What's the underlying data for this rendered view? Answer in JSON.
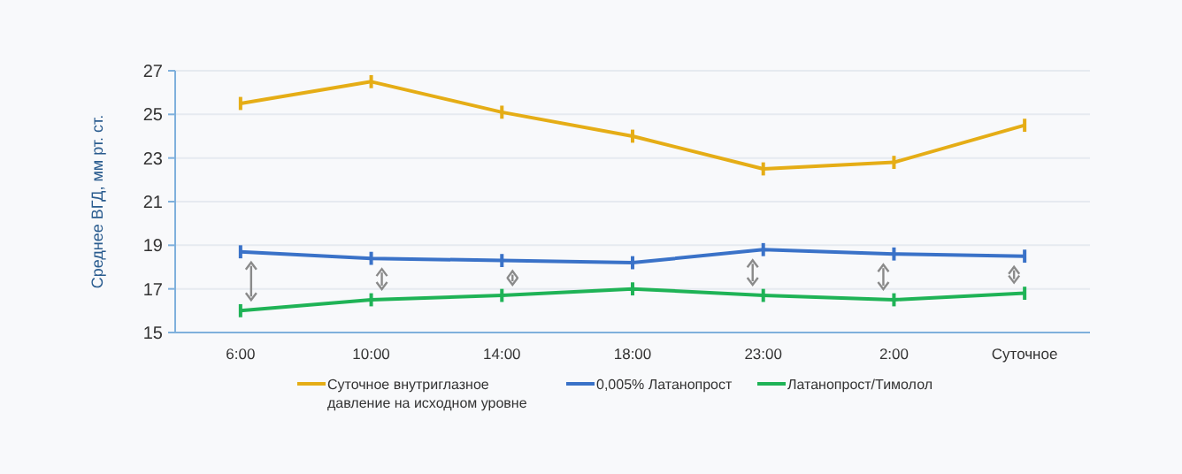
{
  "chart_data": {
    "type": "line",
    "ylabel": "Среднее ВГД, мм рт. ст.",
    "categories": [
      "6:00",
      "10:00",
      "14:00",
      "18:00",
      "23:00",
      "2:00",
      "Суточное"
    ],
    "series": [
      {
        "name": "Суточное внутриглазное давление на исходном уровне",
        "color": "#e5ad16",
        "values": [
          25.5,
          26.5,
          25.1,
          24.0,
          22.5,
          22.8,
          24.5
        ],
        "errors": [
          0.3,
          0.3,
          0.3,
          0.3,
          0.3,
          0.3,
          0.3
        ]
      },
      {
        "name": "0,005% Латанопрост",
        "color": "#3a72c8",
        "values": [
          18.7,
          18.4,
          18.3,
          18.2,
          18.8,
          18.6,
          18.5
        ],
        "errors": [
          0.3,
          0.3,
          0.3,
          0.3,
          0.3,
          0.3,
          0.3
        ]
      },
      {
        "name": "Латанопрост/Тимолол",
        "color": "#1fb356",
        "values": [
          16.0,
          16.5,
          16.7,
          17.0,
          16.7,
          16.5,
          16.8
        ],
        "errors": [
          0.3,
          0.3,
          0.3,
          0.3,
          0.3,
          0.3,
          0.3
        ]
      }
    ],
    "ylim": [
      15,
      27
    ],
    "yticks": [
      15,
      17,
      19,
      21,
      23,
      25,
      27
    ],
    "grid": "y",
    "legend": "bottom"
  }
}
